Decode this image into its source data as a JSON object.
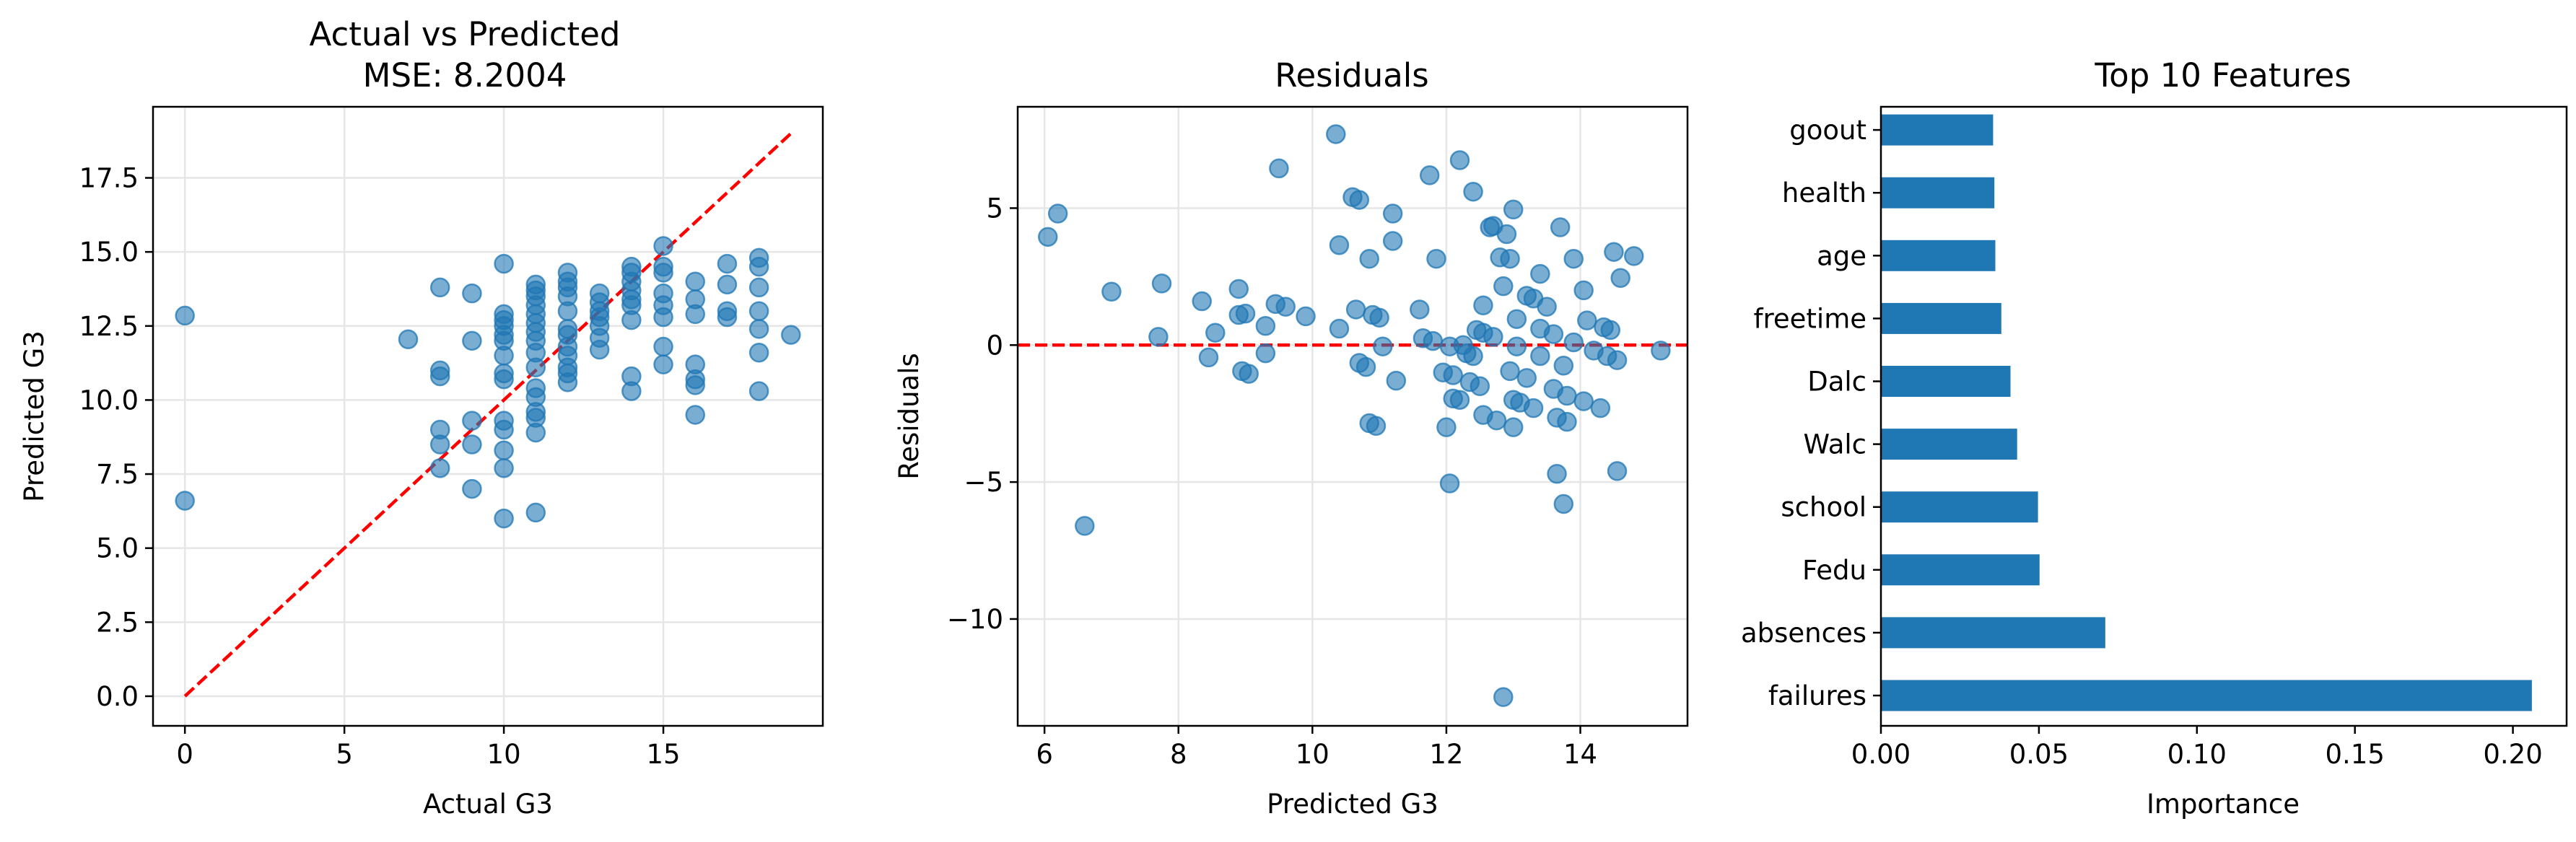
{
  "chart_data": [
    {
      "type": "scatter",
      "title": "Actual vs Predicted",
      "subtitle": "MSE: 8.2004",
      "xlabel": "Actual G3",
      "ylabel": "Predicted G3",
      "xlim": [
        -1,
        20
      ],
      "ylim": [
        -1.0,
        19.9
      ],
      "xticks": [
        0,
        5,
        10,
        15
      ],
      "yticks": [
        0.0,
        2.5,
        5.0,
        7.5,
        10.0,
        12.5,
        15.0,
        17.5
      ],
      "grid": true,
      "point_color": "#1f77b4",
      "points": [
        [
          0,
          12.85
        ],
        [
          0,
          6.6
        ],
        [
          7,
          12.05
        ],
        [
          8,
          13.8
        ],
        [
          8,
          11.0
        ],
        [
          8,
          10.8
        ],
        [
          8,
          9.0
        ],
        [
          8,
          8.5
        ],
        [
          8,
          7.7
        ],
        [
          9,
          13.6
        ],
        [
          9,
          12.0
        ],
        [
          9,
          9.3
        ],
        [
          9,
          8.5
        ],
        [
          9,
          7.0
        ],
        [
          10,
          14.6
        ],
        [
          10,
          12.9
        ],
        [
          10,
          12.7
        ],
        [
          10,
          12.5
        ],
        [
          10,
          12.2
        ],
        [
          10,
          12.0
        ],
        [
          10,
          11.5
        ],
        [
          10,
          10.9
        ],
        [
          10,
          10.7
        ],
        [
          10,
          9.3
        ],
        [
          10,
          9.0
        ],
        [
          10,
          8.3
        ],
        [
          10,
          7.7
        ],
        [
          10,
          6.0
        ],
        [
          11,
          13.9
        ],
        [
          11,
          13.7
        ],
        [
          11,
          13.5
        ],
        [
          11,
          13.2
        ],
        [
          11,
          12.9
        ],
        [
          11,
          12.6
        ],
        [
          11,
          12.3
        ],
        [
          11,
          12.0
        ],
        [
          11,
          11.6
        ],
        [
          11,
          11.1
        ],
        [
          11,
          10.4
        ],
        [
          11,
          10.1
        ],
        [
          11,
          9.6
        ],
        [
          11,
          9.4
        ],
        [
          11,
          8.9
        ],
        [
          11,
          6.2
        ],
        [
          12,
          14.3
        ],
        [
          12,
          14.0
        ],
        [
          12,
          13.8
        ],
        [
          12,
          13.5
        ],
        [
          12,
          13.0
        ],
        [
          12,
          12.4
        ],
        [
          12,
          12.2
        ],
        [
          12,
          11.8
        ],
        [
          12,
          11.5
        ],
        [
          12,
          11.1
        ],
        [
          12,
          10.9
        ],
        [
          12,
          10.6
        ],
        [
          13,
          13.6
        ],
        [
          13,
          13.3
        ],
        [
          13,
          13.0
        ],
        [
          13,
          12.8
        ],
        [
          13,
          12.5
        ],
        [
          13,
          12.1
        ],
        [
          13,
          11.7
        ],
        [
          14,
          14.5
        ],
        [
          14,
          14.3
        ],
        [
          14,
          14.0
        ],
        [
          14,
          13.7
        ],
        [
          14,
          13.4
        ],
        [
          14,
          13.2
        ],
        [
          14,
          12.7
        ],
        [
          14,
          10.8
        ],
        [
          14,
          10.3
        ],
        [
          15,
          15.2
        ],
        [
          15,
          14.5
        ],
        [
          15,
          14.3
        ],
        [
          15,
          13.6
        ],
        [
          15,
          13.2
        ],
        [
          15,
          12.8
        ],
        [
          15,
          11.8
        ],
        [
          15,
          11.2
        ],
        [
          16,
          14.0
        ],
        [
          16,
          13.4
        ],
        [
          16,
          12.9
        ],
        [
          16,
          11.2
        ],
        [
          16,
          10.7
        ],
        [
          16,
          10.5
        ],
        [
          16,
          9.5
        ],
        [
          17,
          14.6
        ],
        [
          17,
          13.9
        ],
        [
          17,
          13.0
        ],
        [
          17,
          12.8
        ],
        [
          18,
          14.8
        ],
        [
          18,
          14.5
        ],
        [
          18,
          13.8
        ],
        [
          18,
          13.0
        ],
        [
          18,
          12.4
        ],
        [
          18,
          11.6
        ],
        [
          18,
          10.3
        ],
        [
          19,
          12.2
        ]
      ],
      "reference_line": {
        "from": [
          0,
          0
        ],
        "to": [
          19,
          19
        ],
        "color": "#ff0000",
        "style": "dashed"
      }
    },
    {
      "type": "scatter",
      "title": "Residuals",
      "xlabel": "Predicted G3",
      "ylabel": "Residuals",
      "xlim": [
        5.6,
        15.6
      ],
      "ylim": [
        -13.9,
        8.7
      ],
      "xticks": [
        6,
        8,
        10,
        12,
        14
      ],
      "yticks": [
        -10,
        -5,
        0,
        5
      ],
      "grid": true,
      "point_color": "#1f77b4",
      "points": [
        [
          6.05,
          3.95
        ],
        [
          6.2,
          4.8
        ],
        [
          6.6,
          -6.6
        ],
        [
          7.0,
          1.95
        ],
        [
          7.7,
          0.3
        ],
        [
          7.75,
          2.25
        ],
        [
          8.35,
          1.6
        ],
        [
          8.45,
          -0.45
        ],
        [
          8.55,
          0.45
        ],
        [
          8.9,
          2.05
        ],
        [
          8.9,
          1.1
        ],
        [
          8.95,
          -0.95
        ],
        [
          9.0,
          1.15
        ],
        [
          9.05,
          -1.05
        ],
        [
          9.3,
          0.7
        ],
        [
          9.3,
          -0.3
        ],
        [
          9.45,
          1.5
        ],
        [
          9.5,
          6.45
        ],
        [
          9.6,
          1.4
        ],
        [
          9.9,
          1.05
        ],
        [
          10.35,
          7.7
        ],
        [
          10.4,
          3.65
        ],
        [
          10.4,
          0.6
        ],
        [
          10.6,
          5.4
        ],
        [
          10.65,
          1.3
        ],
        [
          10.7,
          5.3
        ],
        [
          10.7,
          -0.65
        ],
        [
          10.8,
          -0.8
        ],
        [
          10.85,
          3.15
        ],
        [
          10.85,
          -2.85
        ],
        [
          10.9,
          1.1
        ],
        [
          10.95,
          -2.95
        ],
        [
          11.0,
          1.0
        ],
        [
          11.05,
          -0.05
        ],
        [
          11.2,
          4.8
        ],
        [
          11.2,
          3.8
        ],
        [
          11.25,
          -1.3
        ],
        [
          11.6,
          1.3
        ],
        [
          11.65,
          0.25
        ],
        [
          11.75,
          6.2
        ],
        [
          11.8,
          0.15
        ],
        [
          11.85,
          3.15
        ],
        [
          11.95,
          -1.0
        ],
        [
          12.0,
          -3.0
        ],
        [
          12.05,
          -5.05
        ],
        [
          12.05,
          -0.05
        ],
        [
          12.1,
          -1.95
        ],
        [
          12.1,
          -1.1
        ],
        [
          12.2,
          6.75
        ],
        [
          12.2,
          -2.0
        ],
        [
          12.25,
          0.0
        ],
        [
          12.3,
          -0.3
        ],
        [
          12.35,
          -1.35
        ],
        [
          12.4,
          5.6
        ],
        [
          12.4,
          -0.4
        ],
        [
          12.45,
          0.55
        ],
        [
          12.5,
          -1.5
        ],
        [
          12.55,
          1.45
        ],
        [
          12.55,
          0.45
        ],
        [
          12.55,
          -2.55
        ],
        [
          12.65,
          4.3
        ],
        [
          12.7,
          4.35
        ],
        [
          12.7,
          0.3
        ],
        [
          12.75,
          -2.75
        ],
        [
          12.8,
          3.2
        ],
        [
          12.85,
          -12.85
        ],
        [
          12.85,
          2.15
        ],
        [
          12.9,
          4.05
        ],
        [
          12.95,
          -0.95
        ],
        [
          12.95,
          3.15
        ],
        [
          13.0,
          4.95
        ],
        [
          13.0,
          -2.0
        ],
        [
          13.0,
          -3.0
        ],
        [
          13.05,
          0.95
        ],
        [
          13.05,
          -0.05
        ],
        [
          13.1,
          -2.1
        ],
        [
          13.2,
          1.8
        ],
        [
          13.2,
          -1.2
        ],
        [
          13.3,
          1.7
        ],
        [
          13.3,
          -2.3
        ],
        [
          13.4,
          2.6
        ],
        [
          13.4,
          0.6
        ],
        [
          13.4,
          -0.4
        ],
        [
          13.5,
          1.4
        ],
        [
          13.6,
          0.4
        ],
        [
          13.6,
          -1.6
        ],
        [
          13.65,
          -2.65
        ],
        [
          13.65,
          -4.7
        ],
        [
          13.7,
          4.3
        ],
        [
          13.75,
          -0.75
        ],
        [
          13.75,
          -5.8
        ],
        [
          13.8,
          -1.85
        ],
        [
          13.8,
          -2.8
        ],
        [
          13.9,
          3.15
        ],
        [
          13.9,
          0.1
        ],
        [
          14.05,
          2.0
        ],
        [
          14.05,
          -2.05
        ],
        [
          14.1,
          0.9
        ],
        [
          14.2,
          -0.2
        ],
        [
          14.3,
          -2.3
        ],
        [
          14.35,
          0.65
        ],
        [
          14.4,
          -0.4
        ],
        [
          14.45,
          0.55
        ],
        [
          14.5,
          3.4
        ],
        [
          14.55,
          -0.55
        ],
        [
          14.55,
          -4.6
        ],
        [
          14.6,
          2.45
        ],
        [
          14.8,
          3.25
        ],
        [
          15.2,
          -0.2
        ]
      ],
      "reference_line": {
        "y": 0,
        "color": "#ff0000",
        "style": "dashed"
      }
    },
    {
      "type": "bar",
      "orientation": "horizontal",
      "title": "Top 10 Features",
      "xlabel": "Importance",
      "xlim": [
        0,
        0.217
      ],
      "xticks": [
        0.0,
        0.05,
        0.1,
        0.15,
        0.2
      ],
      "tick_labels": [
        "0.00",
        "0.05",
        "0.10",
        "0.15",
        "0.20"
      ],
      "grid": false,
      "bar_color": "#1f77b4",
      "categories": [
        "goout",
        "health",
        "age",
        "freetime",
        "Dalc",
        "Walc",
        "school",
        "Fedu",
        "absences",
        "failures"
      ],
      "values": [
        0.0355,
        0.0359,
        0.0362,
        0.0381,
        0.041,
        0.0431,
        0.0497,
        0.0502,
        0.071,
        0.206
      ]
    }
  ]
}
